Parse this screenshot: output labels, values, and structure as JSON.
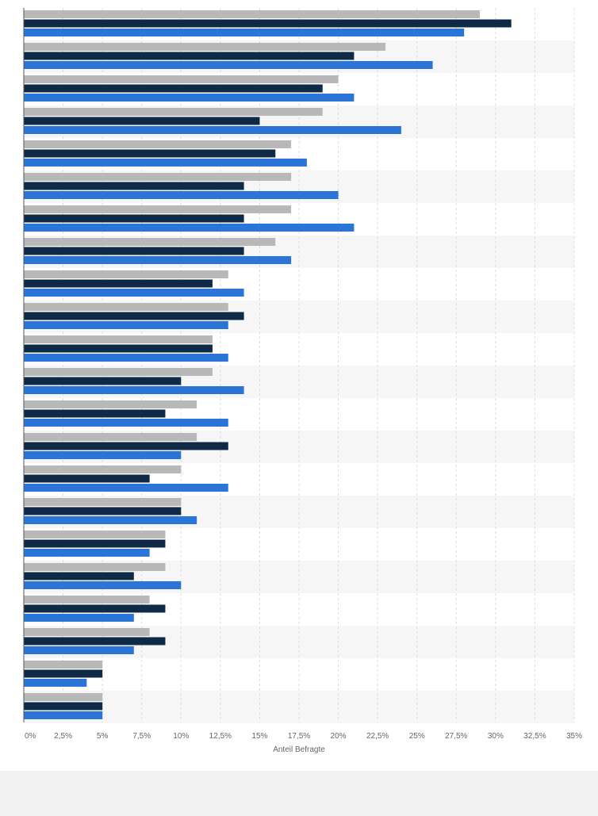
{
  "chart_data": {
    "type": "bar",
    "orientation": "horizontal",
    "xlabel": "Anteil Befragte",
    "xlim": [
      0,
      35
    ],
    "x_ticks": [
      "0%",
      "2,5%",
      "5%",
      "7,5%",
      "10%",
      "12,5%",
      "15%",
      "17,5%",
      "20%",
      "22,5%",
      "25%",
      "27,5%",
      "30%",
      "32,5%",
      "35%"
    ],
    "grid": true,
    "legend": "none",
    "categories": [
      "",
      "",
      "",
      "",
      "",
      "",
      "",
      "",
      "",
      "",
      "",
      "",
      "",
      "",
      "",
      "",
      "",
      "",
      "",
      "",
      "",
      ""
    ],
    "series": [
      {
        "color": "#b8b8b8",
        "values": [
          29,
          23,
          20,
          19,
          17,
          17,
          17,
          16,
          13,
          13,
          12,
          12,
          11,
          11,
          10,
          10,
          9,
          9,
          8,
          8,
          5,
          5
        ]
      },
      {
        "color": "#0f2a47",
        "values": [
          31,
          21,
          19,
          15,
          16,
          14,
          14,
          14,
          12,
          14,
          12,
          10,
          9,
          13,
          8,
          10,
          9,
          7,
          9,
          9,
          5,
          5
        ]
      },
      {
        "color": "#2b75d8",
        "values": [
          28,
          26,
          21,
          24,
          18,
          20,
          21,
          17,
          14,
          13,
          13,
          14,
          13,
          10,
          13,
          11,
          8,
          10,
          7,
          7,
          4,
          5
        ]
      }
    ]
  }
}
